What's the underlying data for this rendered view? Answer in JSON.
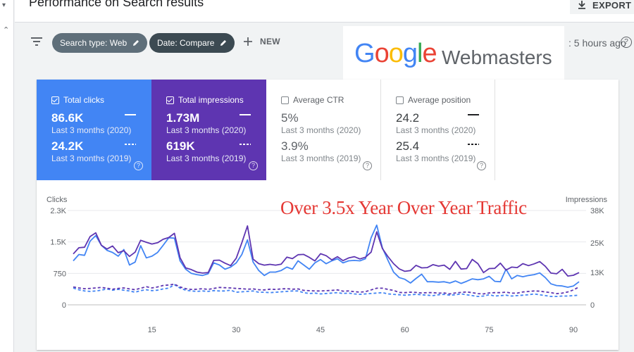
{
  "header": {
    "title": "Performance on Search results",
    "export_label": "EXPORT"
  },
  "filters": {
    "search_type_chip": "Search type: Web",
    "date_chip": "Date: Compare",
    "new_label": "NEW",
    "updated_text": ": 5 hours ago"
  },
  "logo": {
    "google_letters": [
      "G",
      "o",
      "o",
      "g",
      "l",
      "e"
    ],
    "product": "Webmasters"
  },
  "metrics": {
    "clicks": {
      "label": "Total clicks",
      "value_current": "86.6K",
      "period_current": "Last 3 months (2020)",
      "value_previous": "24.2K",
      "period_previous": "Last 3 months (2019)",
      "checked": true
    },
    "impressions": {
      "label": "Total impressions",
      "value_current": "1.73M",
      "period_current": "Last 3 months (2020)",
      "value_previous": "619K",
      "period_previous": "Last 3 months (2019)",
      "checked": true
    },
    "ctr": {
      "label": "Average CTR",
      "value_current": "5%",
      "period_current": "Last 3 months (2020)",
      "value_previous": "3.9%",
      "period_previous": "Last 3 months (2019)",
      "checked": false
    },
    "position": {
      "label": "Average position",
      "value_current": "24.2",
      "period_current": "Last 3 months (2020)",
      "value_previous": "25.4",
      "period_previous": "Last 3 months (2019)",
      "checked": false
    }
  },
  "help_glyph": "?",
  "annotation": "Over 3.5x Year Over Year Traffic",
  "colors": {
    "clicks": "#4285f4",
    "impressions": "#5e35b1",
    "annotation": "#e53935"
  },
  "chart_data": {
    "type": "line",
    "left_axis_label": "Clicks",
    "right_axis_label": "Impressions",
    "left_ticks": [
      "2.3K",
      "1.5K",
      "750",
      "0"
    ],
    "left_tick_values": [
      2250,
      1500,
      750,
      0
    ],
    "right_ticks": [
      "38K",
      "25K",
      "13K",
      "0"
    ],
    "right_tick_values": [
      38000,
      25000,
      13000,
      0
    ],
    "x_ticks": [
      "15",
      "30",
      "45",
      "60",
      "75",
      "90"
    ],
    "x_tick_values": [
      15,
      30,
      45,
      60,
      75,
      90
    ],
    "xlim": [
      1,
      91
    ],
    "ylim_left": [
      0,
      2250
    ],
    "ylim_right": [
      0,
      38000
    ],
    "grid": true,
    "series": [
      {
        "name": "Total clicks",
        "period": "2020",
        "style": "solid",
        "axis": "left",
        "values": [
          1050,
          1200,
          1180,
          1520,
          1650,
          1420,
          1300,
          1250,
          1160,
          1320,
          950,
          1020,
          1410,
          1120,
          1160,
          1250,
          1420,
          1600,
          1590,
          1050,
          850,
          750,
          720,
          700,
          740,
          1000,
          950,
          850,
          900,
          1000,
          1200,
          1550,
          1020,
          820,
          700,
          780,
          780,
          820,
          900,
          850,
          1050,
          950,
          850,
          1000,
          1080,
          980,
          1050,
          1100,
          1000,
          1050,
          1060,
          1050,
          1100,
          1600,
          1900,
          1360,
          1060,
          780,
          650,
          610,
          520,
          630,
          730,
          550,
          550,
          540,
          550,
          520,
          570,
          510,
          560,
          620,
          600,
          620,
          680,
          560,
          550,
          850,
          620,
          700,
          670,
          700,
          720,
          760,
          650,
          500,
          460,
          450,
          420,
          450,
          550
        ]
      },
      {
        "name": "Total impressions",
        "period": "2020",
        "style": "solid",
        "axis": "right",
        "values": [
          20500,
          23000,
          23200,
          27500,
          29000,
          24000,
          22500,
          23700,
          21000,
          21800,
          19500,
          21200,
          26000,
          25200,
          24500,
          25000,
          26400,
          27100,
          28800,
          19000,
          14900,
          14200,
          13200,
          12800,
          13000,
          17900,
          18000,
          16800,
          15800,
          18800,
          25000,
          31800,
          18400,
          16600,
          16000,
          16300,
          16000,
          16400,
          19200,
          18600,
          20200,
          20300,
          19100,
          17700,
          20600,
          19800,
          18100,
          19400,
          17800,
          18900,
          19400,
          18500,
          19200,
          21200,
          29400,
          22700,
          19400,
          16600,
          14500,
          13500,
          13800,
          15900,
          14900,
          15000,
          16200,
          15600,
          16000,
          14300,
          17500,
          14400,
          14600,
          18300,
          16600,
          13000,
          14600,
          14700,
          16800,
          14000,
          15200,
          15000,
          16600,
          15800,
          16500,
          17400,
          15500,
          12800,
          12500,
          14300,
          11600,
          11900,
          13000
        ]
      },
      {
        "name": "Total clicks",
        "period": "2019",
        "style": "dashed",
        "axis": "left",
        "values": [
          400,
          360,
          330,
          320,
          330,
          350,
          380,
          350,
          370,
          350,
          330,
          300,
          340,
          360,
          340,
          350,
          380,
          400,
          480,
          400,
          350,
          330,
          320,
          330,
          320,
          340,
          330,
          330,
          350,
          300,
          310,
          320,
          330,
          300,
          300,
          290,
          300,
          310,
          320,
          330,
          330,
          290,
          270,
          280,
          260,
          270,
          280,
          290,
          270,
          280,
          260,
          250,
          260,
          270,
          280,
          290,
          260,
          250,
          240,
          230,
          240,
          250,
          240,
          230,
          220,
          240,
          250,
          230,
          240,
          260,
          240,
          220,
          200,
          210,
          240,
          210,
          220,
          230,
          210,
          220,
          230,
          240,
          260,
          240,
          220,
          200,
          200,
          210,
          210,
          220,
          230
        ]
      },
      {
        "name": "Total impressions",
        "period": "2019",
        "style": "dashed",
        "axis": "right",
        "values": [
          7200,
          6800,
          6500,
          6600,
          6800,
          7000,
          6700,
          6300,
          6600,
          6800,
          6400,
          6100,
          6700,
          7300,
          6800,
          7200,
          7800,
          8000,
          8300,
          7200,
          6500,
          6200,
          6300,
          6500,
          6200,
          6600,
          7000,
          6900,
          6800,
          6600,
          6500,
          6300,
          6400,
          6100,
          6000,
          6300,
          6200,
          6400,
          6500,
          6300,
          6400,
          5800,
          5700,
          5600,
          5600,
          5700,
          5800,
          6000,
          5500,
          5600,
          5300,
          5100,
          5300,
          6000,
          6700,
          6700,
          6200,
          5800,
          5000,
          4900,
          5100,
          5000,
          4800,
          4900,
          4900,
          4700,
          4800,
          4400,
          4800,
          5000,
          5200,
          4900,
          4500,
          4400,
          4800,
          4900,
          4900,
          5100,
          4700,
          4700,
          5200,
          5400,
          5600,
          5500,
          5200,
          4900,
          4500,
          4700,
          5200,
          6000,
          7200
        ]
      }
    ]
  }
}
